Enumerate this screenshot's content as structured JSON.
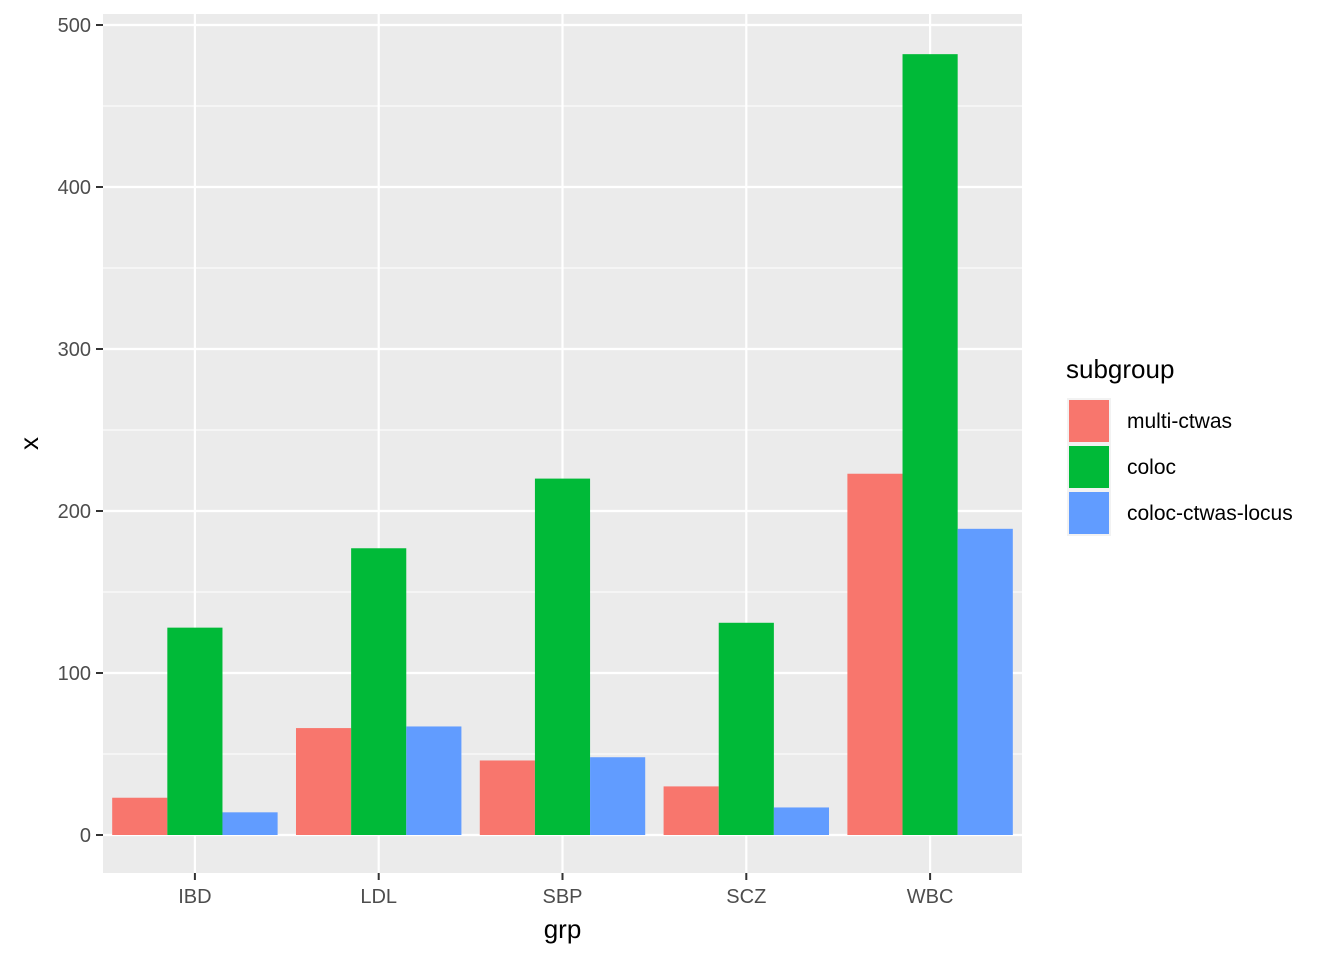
{
  "chart_data": {
    "type": "bar",
    "subtype": "grouped",
    "categories": [
      "IBD",
      "LDL",
      "SBP",
      "SCZ",
      "WBC"
    ],
    "series": [
      {
        "name": "multi-ctwas",
        "color": "#F8766D",
        "values": [
          23,
          66,
          46,
          30,
          223
        ]
      },
      {
        "name": "coloc",
        "color": "#00BA38",
        "values": [
          128,
          177,
          220,
          131,
          482
        ]
      },
      {
        "name": "coloc-ctwas-locus",
        "color": "#619CFF",
        "values": [
          14,
          67,
          48,
          17,
          189
        ]
      }
    ],
    "xlabel": "grp",
    "ylabel": "x",
    "ylim": [
      0,
      500
    ],
    "yticks": [
      0,
      100,
      200,
      300,
      400,
      500
    ],
    "legend": {
      "title": "subgroup",
      "position": "right"
    },
    "grid": true
  }
}
